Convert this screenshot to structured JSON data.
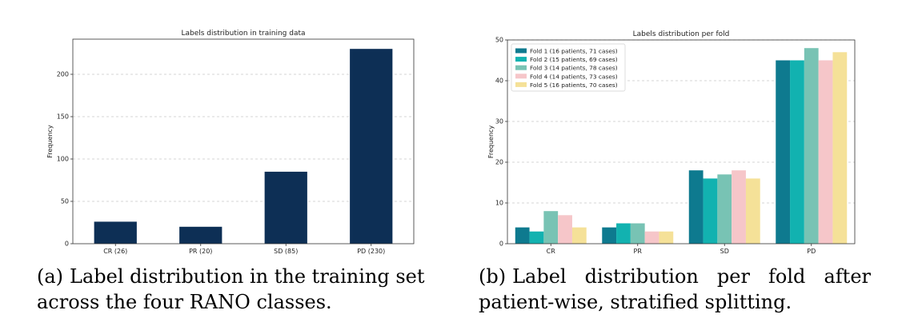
{
  "chart_data": [
    {
      "type": "bar",
      "title": "Labels distribution in training data",
      "xlabel": "",
      "ylabel": "Frequency",
      "categories": [
        "CR (26)",
        "PR (20)",
        "SD (85)",
        "PD (230)"
      ],
      "values": [
        26,
        20,
        85,
        230
      ],
      "ylim": [
        0,
        241.5
      ],
      "yticks": [
        0,
        50,
        100,
        150,
        200
      ],
      "grid": "horizontal-dashed",
      "colors": {
        "bar": "#0d2f55"
      }
    },
    {
      "type": "bar",
      "title": "Labels distribution per fold",
      "xlabel": "",
      "ylabel": "Frequency",
      "categories": [
        "CR",
        "PR",
        "SD",
        "PD"
      ],
      "series": [
        {
          "name": "Fold 1 (16 patients, 71 cases)",
          "values": [
            4,
            4,
            18,
            45
          ],
          "color": "#0e7a8f"
        },
        {
          "name": "Fold 2 (15 patients, 69 cases)",
          "values": [
            3,
            5,
            16,
            45
          ],
          "color": "#12b2b0"
        },
        {
          "name": "Fold 3 (14 patients, 78 cases)",
          "values": [
            8,
            5,
            17,
            48
          ],
          "color": "#78c3b4"
        },
        {
          "name": "Fold 4 (14 patients, 73 cases)",
          "values": [
            7,
            3,
            18,
            45
          ],
          "color": "#f6c6c9"
        },
        {
          "name": "Fold 5 (16 patients, 70 cases)",
          "values": [
            4,
            3,
            16,
            47
          ],
          "color": "#f5e198"
        }
      ],
      "ylim": [
        0,
        50
      ],
      "yticks": [
        0,
        10,
        20,
        30,
        40,
        50
      ],
      "grid": "horizontal-dashed",
      "legend": "top-left"
    }
  ],
  "captions": {
    "a": {
      "tag": "(a)",
      "text": "Label distribution in the training set across the four RANO classes."
    },
    "b": {
      "tag": "(b)",
      "text": "Label distribution per fold after patient-wise, stratified splitting."
    }
  }
}
